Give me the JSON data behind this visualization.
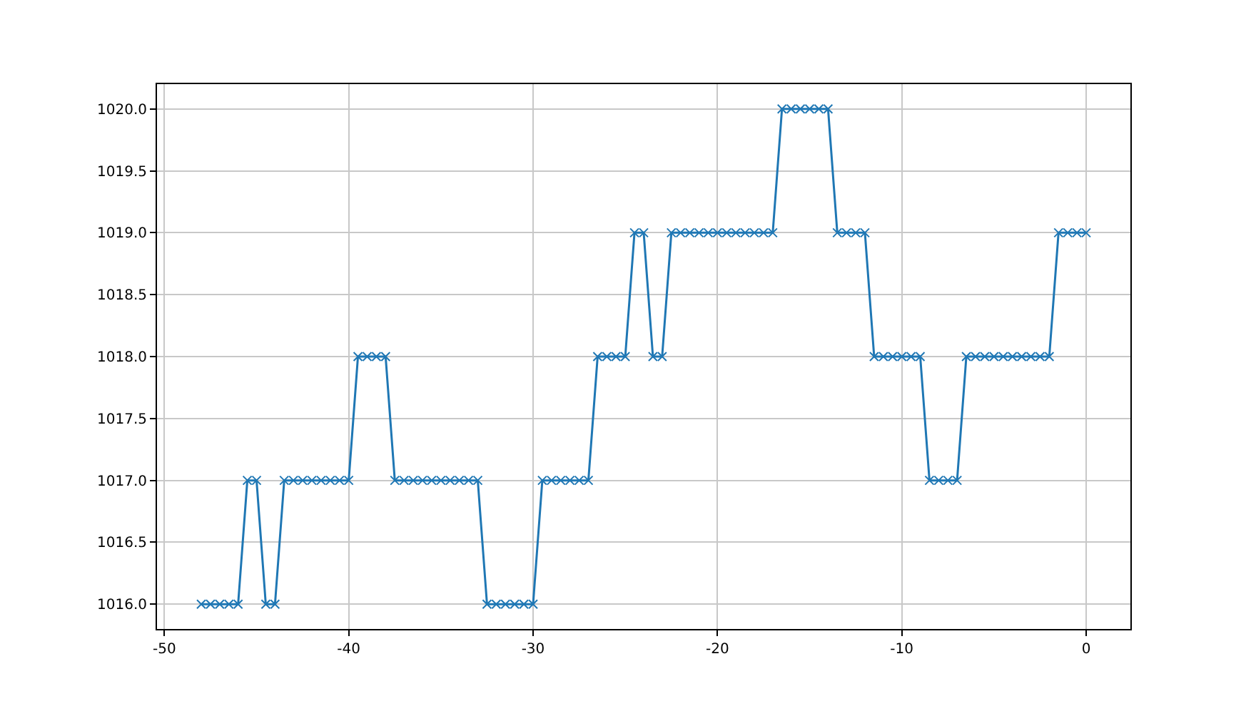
{
  "chart_data": {
    "type": "line",
    "marker": "cross",
    "grid": true,
    "legend": false,
    "xlim": [
      -50.4,
      2.4
    ],
    "ylim": [
      1015.8,
      1020.2
    ],
    "xticks": [
      -50,
      -40,
      -30,
      -20,
      -10,
      0
    ],
    "yticks": [
      {
        "value": 1016,
        "label": "1016.0"
      },
      {
        "value": 1016.5,
        "label": "1016.5"
      },
      {
        "value": 1017,
        "label": "1017.0"
      },
      {
        "value": 1017.5,
        "label": "1017.5"
      },
      {
        "value": 1018,
        "label": "1018.0"
      },
      {
        "value": 1018.5,
        "label": "1018.5"
      },
      {
        "value": 1019,
        "label": "1019.0"
      },
      {
        "value": 1019.5,
        "label": "1019.5"
      },
      {
        "value": 1020,
        "label": "1020.0"
      }
    ],
    "x": [
      -48,
      -47.5,
      -47,
      -46.5,
      -46,
      -45.5,
      -45,
      -44.5,
      -44,
      -43.5,
      -43,
      -42.5,
      -42,
      -41.5,
      -41,
      -40.5,
      -40,
      -39.5,
      -39,
      -38.5,
      -38,
      -37.5,
      -37,
      -36.5,
      -36,
      -35.5,
      -35,
      -34.5,
      -34,
      -33.5,
      -33,
      -32.5,
      -32,
      -31.5,
      -31,
      -30.5,
      -30,
      -29.5,
      -29,
      -28.5,
      -28,
      -27.5,
      -27,
      -26.5,
      -26,
      -25.5,
      -25,
      -24.5,
      -24,
      -23.5,
      -23,
      -22.5,
      -22,
      -21.5,
      -21,
      -20.5,
      -20,
      -19.5,
      -19,
      -18.5,
      -18,
      -17.5,
      -17,
      -16.5,
      -16,
      -15.5,
      -15,
      -14.5,
      -14,
      -13.5,
      -13,
      -12.5,
      -12,
      -11.5,
      -11,
      -10.5,
      -10,
      -9.5,
      -9,
      -8.5,
      -8,
      -7.5,
      -7,
      -6.5,
      -6,
      -5.5,
      -5,
      -4.5,
      -4,
      -3.5,
      -3,
      -2.5,
      -2,
      -1.5,
      -1,
      -0.5,
      0
    ],
    "series": [
      {
        "color": "#1f77b4",
        "values": [
          1016,
          1016,
          1016,
          1016,
          1016,
          1017,
          1017,
          1016,
          1016,
          1017,
          1017,
          1017,
          1017,
          1017,
          1017,
          1017,
          1017,
          1018,
          1018,
          1018,
          1018,
          1017,
          1017,
          1017,
          1017,
          1017,
          1017,
          1017,
          1017,
          1017,
          1017,
          1016,
          1016,
          1016,
          1016,
          1016,
          1016,
          1017,
          1017,
          1017,
          1017,
          1017,
          1017,
          1018,
          1018,
          1018,
          1018,
          1019,
          1019,
          1018,
          1018,
          1019,
          1019,
          1019,
          1019,
          1019,
          1019,
          1019,
          1019,
          1019,
          1019,
          1019,
          1019,
          1020,
          1020,
          1020,
          1020,
          1020,
          1020,
          1019,
          1019,
          1019,
          1019,
          1018,
          1018,
          1018,
          1018,
          1018,
          1018,
          1017,
          1017,
          1017,
          1017,
          1018,
          1018,
          1018,
          1018,
          1018,
          1018,
          1018,
          1018,
          1018,
          1018,
          1019,
          1019,
          1019,
          1019
        ]
      }
    ]
  }
}
